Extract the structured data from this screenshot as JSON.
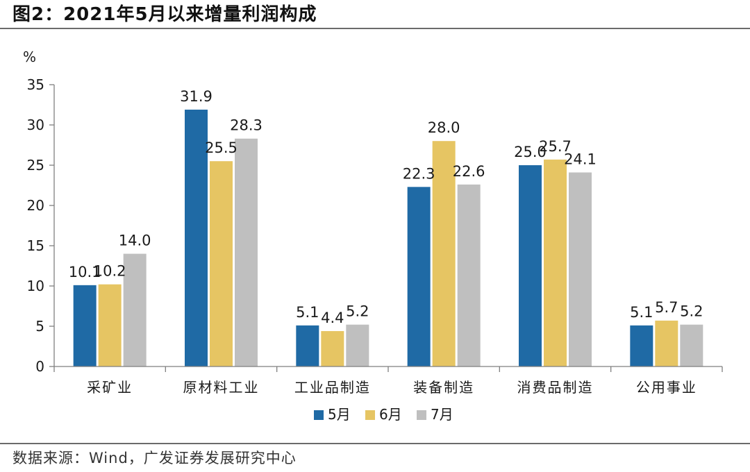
{
  "header": {
    "title": "图2：2021年5月以来增量利润构成"
  },
  "footer": {
    "source": "数据来源：Wind，广发证券发展研究中心"
  },
  "colors": {
    "series_5": "#1f6aa5",
    "series_6": "#e6c563",
    "series_7": "#bfbfbf",
    "axis": "#7f7f7f",
    "text": "#1a1a1a"
  },
  "chart_data": {
    "type": "bar",
    "title": "",
    "xlabel": "",
    "ylabel": "%",
    "ylim": [
      0,
      35
    ],
    "yticks": [
      0,
      5,
      10,
      15,
      20,
      25,
      30,
      35
    ],
    "grid": false,
    "legend": "bottom-center",
    "categories": [
      "采矿业",
      "原材料工业",
      "工业品制造",
      "装备制造",
      "消费品制造",
      "公用事业"
    ],
    "series": [
      {
        "name": "5月",
        "color": "#1f6aa5",
        "values": [
          10.1,
          31.9,
          5.1,
          22.3,
          25.0,
          5.1
        ]
      },
      {
        "name": "6月",
        "color": "#e6c563",
        "values": [
          10.2,
          25.5,
          4.4,
          28.0,
          25.7,
          5.7
        ]
      },
      {
        "name": "7月",
        "color": "#bfbfbf",
        "values": [
          14.0,
          28.3,
          5.2,
          22.6,
          24.1,
          5.2
        ]
      }
    ]
  }
}
